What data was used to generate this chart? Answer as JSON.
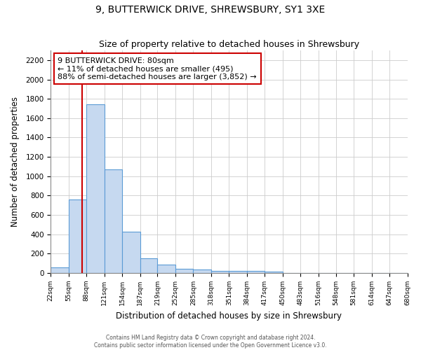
{
  "title": "9, BUTTERWICK DRIVE, SHREWSBURY, SY1 3XE",
  "subtitle": "Size of property relative to detached houses in Shrewsbury",
  "xlabel": "Distribution of detached houses by size in Shrewsbury",
  "ylabel": "Number of detached properties",
  "bar_edges": [
    22,
    55,
    88,
    121,
    154,
    187,
    219,
    252,
    285,
    318,
    351,
    384,
    417,
    450,
    483,
    516,
    548,
    581,
    614,
    647,
    680
  ],
  "bar_heights": [
    60,
    760,
    1740,
    1070,
    430,
    155,
    85,
    45,
    35,
    25,
    20,
    20,
    15,
    0,
    0,
    0,
    0,
    0,
    0,
    0
  ],
  "bar_color": "#c6d9f0",
  "bar_edge_color": "#5b9bd5",
  "property_line_x": 80,
  "property_line_color": "#cc0000",
  "annotation_text_line1": "9 BUTTERWICK DRIVE: 80sqm",
  "annotation_text_line2": "← 11% of detached houses are smaller (495)",
  "annotation_text_line3": "88% of semi-detached houses are larger (3,852) →",
  "ylim": [
    0,
    2300
  ],
  "yticks": [
    0,
    200,
    400,
    600,
    800,
    1000,
    1200,
    1400,
    1600,
    1800,
    2000,
    2200
  ],
  "footer_line1": "Contains HM Land Registry data © Crown copyright and database right 2024.",
  "footer_line2": "Contains public sector information licensed under the Open Government Licence v3.0.",
  "bg_color": "#ffffff",
  "grid_color": "#cccccc"
}
